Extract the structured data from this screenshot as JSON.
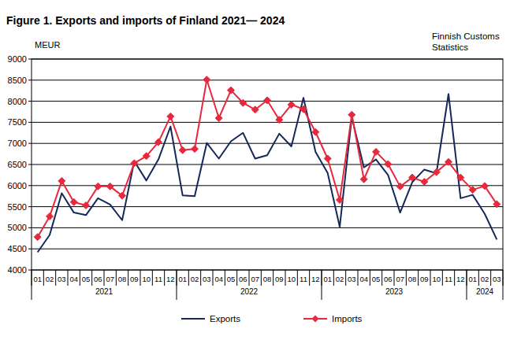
{
  "chart_data": {
    "type": "line",
    "title": "Figure 1. Exports and imports of Finland 2021— 2024",
    "y_label": "MEUR",
    "source": [
      "Finnish Customs",
      "Statistics"
    ],
    "categories": [
      "01",
      "02",
      "03",
      "04",
      "05",
      "06",
      "07",
      "08",
      "09",
      "10",
      "11",
      "12",
      "01",
      "02",
      "03",
      "04",
      "05",
      "06",
      "07",
      "08",
      "09",
      "10",
      "11",
      "12",
      "01",
      "02",
      "03",
      "04",
      "05",
      "06",
      "07",
      "08",
      "09",
      "10",
      "11",
      "12",
      "01",
      "02",
      "03"
    ],
    "year_groups": [
      "2021",
      "2022",
      "2023",
      "2024"
    ],
    "series": [
      {
        "name": "Exports",
        "color": "#14285a",
        "marker": "none",
        "values": [
          4420,
          4830,
          5820,
          5360,
          5300,
          5700,
          5550,
          5180,
          6580,
          6120,
          6620,
          7400,
          5770,
          5750,
          7010,
          6640,
          7050,
          7250,
          6640,
          6720,
          7230,
          6930,
          8080,
          6800,
          6300,
          5020,
          7620,
          6430,
          6620,
          6250,
          5360,
          6080,
          6380,
          6290,
          8170,
          5700,
          5780,
          5330,
          4720
        ]
      },
      {
        "name": "Imports",
        "color": "#e8283c",
        "marker": "diamond",
        "values": [
          4780,
          5270,
          6110,
          5610,
          5530,
          5980,
          5980,
          5760,
          6530,
          6700,
          7030,
          7640,
          6840,
          6870,
          8510,
          7600,
          8260,
          7960,
          7800,
          8020,
          7560,
          7920,
          7810,
          7270,
          6640,
          5660,
          7680,
          6150,
          6800,
          6510,
          5980,
          6190,
          6090,
          6320,
          6560,
          6190,
          5900,
          5990,
          5560
        ]
      }
    ],
    "ylim": [
      4000,
      9000
    ],
    "yticks": [
      4000,
      4500,
      5000,
      5500,
      6000,
      6500,
      7000,
      7500,
      8000,
      8500,
      9000
    ],
    "grid": true,
    "legend": "bottom"
  }
}
